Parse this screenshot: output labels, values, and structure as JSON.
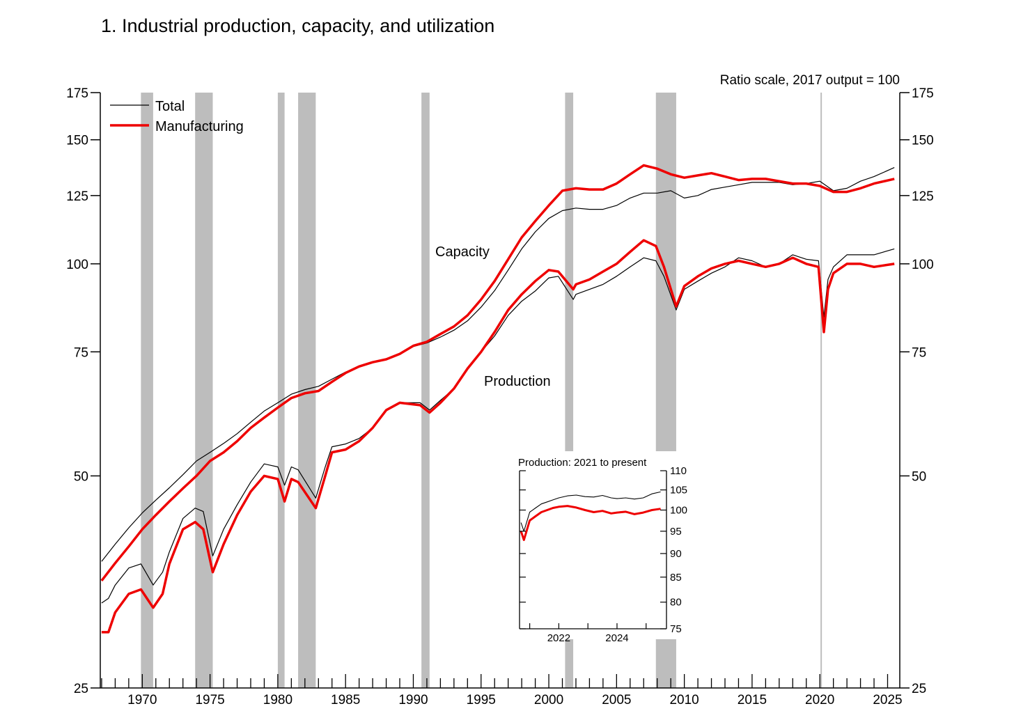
{
  "figure": {
    "title": "1.  Industrial production, capacity, and utilization",
    "scale_note": "Ratio scale, 2017 output = 100"
  },
  "colors": {
    "total": "#000000",
    "manufacturing": "#ee0000",
    "recession": "#bdbdbd"
  },
  "chart_data": {
    "type": "line",
    "title": "1.  Industrial production, capacity, and utilization",
    "yscale": "log",
    "ylim": [
      25,
      175
    ],
    "yticks": [
      25,
      50,
      75,
      100,
      125,
      150,
      175
    ],
    "xlim": [
      1966.9,
      2025.9
    ],
    "xticks": [
      1970,
      1975,
      1980,
      1985,
      1990,
      1995,
      2000,
      2005,
      2010,
      2015,
      2020,
      2025
    ],
    "legend": {
      "placement": "top-left",
      "entries": [
        "Total",
        "Manufacturing"
      ]
    },
    "annotations": [
      "Capacity",
      "Production"
    ],
    "recessions": [
      [
        1969.9,
        1970.8
      ],
      [
        1973.9,
        1975.2
      ],
      [
        1980.0,
        1980.5
      ],
      [
        1981.5,
        1982.8
      ],
      [
        1990.6,
        1991.2
      ],
      [
        2001.2,
        2001.8
      ],
      [
        2007.9,
        2009.4
      ],
      [
        2020.0,
        2020.2
      ]
    ],
    "series": [
      {
        "name": "Capacity",
        "group": "Total",
        "x": [
          1967,
          1968,
          1969,
          1970,
          1971,
          1972,
          1973,
          1974,
          1975,
          1976,
          1977,
          1978,
          1979,
          1980,
          1981,
          1982,
          1983,
          1984,
          1985,
          1986,
          1987,
          1988,
          1989,
          1990,
          1991,
          1992,
          1993,
          1994,
          1995,
          1996,
          1997,
          1998,
          1999,
          2000,
          2001,
          2002,
          2003,
          2004,
          2005,
          2006,
          2007,
          2008,
          2009,
          2010,
          2011,
          2012,
          2013,
          2014,
          2015,
          2016,
          2017,
          2018,
          2019,
          2020,
          2021,
          2022,
          2023,
          2024,
          2025.5
        ],
        "y": [
          37.8,
          40,
          42.2,
          44.3,
          46.2,
          48.1,
          50.2,
          52.5,
          54,
          55.6,
          57.4,
          59.6,
          61.8,
          63.5,
          65.3,
          66.3,
          67,
          68.6,
          70.2,
          71.4,
          72.5,
          73.3,
          74.5,
          76.3,
          77.2,
          78.7,
          80.5,
          83,
          86.8,
          91.6,
          98,
          105,
          111,
          116,
          119,
          120,
          119.5,
          119.5,
          121,
          124,
          126,
          126,
          127,
          124,
          125,
          127.5,
          128.5,
          129.5,
          130.5,
          130.5,
          130.5,
          129.5,
          130,
          131,
          127,
          128,
          131,
          133,
          137
        ]
      },
      {
        "name": "Capacity",
        "group": "Manufacturing",
        "x": [
          1967,
          1968,
          1969,
          1970,
          1971,
          1972,
          1973,
          1974,
          1975,
          1976,
          1977,
          1978,
          1979,
          1980,
          1981,
          1982,
          1983,
          1984,
          1985,
          1986,
          1987,
          1988,
          1989,
          1990,
          1991,
          1992,
          1993,
          1994,
          1995,
          1996,
          1997,
          1998,
          1999,
          2000,
          2001,
          2002,
          2003,
          2004,
          2005,
          2006,
          2007,
          2008,
          2009,
          2010,
          2011,
          2012,
          2013,
          2014,
          2015,
          2016,
          2017,
          2018,
          2019,
          2020,
          2021,
          2022,
          2023,
          2024,
          2025.5
        ],
        "y": [
          35.5,
          37.6,
          39.7,
          42,
          44,
          46,
          48,
          50,
          52.5,
          54,
          56,
          58.5,
          60.5,
          62.5,
          64.5,
          65.5,
          66,
          68,
          70,
          71.5,
          72.5,
          73.2,
          74.5,
          76.5,
          77.5,
          79.5,
          81.5,
          84.5,
          89,
          94.5,
          101.5,
          109,
          115,
          121,
          127,
          128,
          127.5,
          127.5,
          130,
          134,
          138,
          136.5,
          134,
          132.5,
          133.5,
          134.5,
          133,
          131.5,
          132,
          132,
          131,
          130,
          130,
          129,
          126.5,
          126.5,
          128,
          130,
          132
        ]
      },
      {
        "name": "Production",
        "group": "Total",
        "x": [
          1967,
          1967.5,
          1968,
          1969,
          1969.9,
          1970.8,
          1971.5,
          1972,
          1973,
          1973.9,
          1974.5,
          1975.2,
          1976,
          1977,
          1978,
          1979,
          1980.0,
          1980.5,
          1981,
          1981.5,
          1982.8,
          1983.5,
          1984,
          1985,
          1986,
          1987,
          1988,
          1989,
          1990.5,
          1991.2,
          1992,
          1993,
          1994,
          1995,
          1996,
          1997,
          1998,
          1999,
          2000,
          2000.7,
          2001.8,
          2002,
          2003,
          2004,
          2005,
          2006,
          2007,
          2007.9,
          2008.5,
          2009.4,
          2010,
          2011,
          2012,
          2013,
          2014,
          2015,
          2016,
          2017,
          2018,
          2019,
          2019.9,
          2020.3,
          2020.6,
          2021,
          2022,
          2023,
          2024,
          2025.5
        ],
        "y": [
          33,
          33.5,
          35,
          37,
          37.5,
          35,
          36.5,
          39,
          43.5,
          45,
          44.5,
          38.5,
          42,
          45.5,
          49,
          52,
          51.5,
          48.5,
          51.5,
          51,
          46.5,
          51.5,
          55,
          55.5,
          56.5,
          58.5,
          62,
          63.5,
          63.5,
          62,
          64,
          66.5,
          71,
          75,
          79,
          84.5,
          88.5,
          91.5,
          95.5,
          96,
          89,
          90.5,
          92,
          93.5,
          96,
          99,
          102,
          101,
          96,
          86,
          92,
          94.5,
          97,
          99,
          102,
          101,
          99,
          100,
          103,
          101.5,
          101,
          84,
          95,
          99,
          103,
          103,
          103,
          105
        ]
      },
      {
        "name": "Production",
        "group": "Manufacturing",
        "x": [
          1967,
          1967.5,
          1968,
          1969,
          1969.9,
          1970.8,
          1971.5,
          1972,
          1973,
          1973.9,
          1974.5,
          1975.2,
          1976,
          1977,
          1978,
          1979,
          1980.0,
          1980.5,
          1981,
          1981.5,
          1982.8,
          1983.5,
          1984,
          1985,
          1986,
          1987,
          1988,
          1989,
          1990.5,
          1991.2,
          1992,
          1993,
          1994,
          1995,
          1996,
          1997,
          1998,
          1999,
          2000,
          2000.7,
          2001.8,
          2002,
          2003,
          2004,
          2005,
          2006,
          2007,
          2007.9,
          2008.5,
          2009.4,
          2010,
          2011,
          2012,
          2013,
          2014,
          2015,
          2016,
          2017,
          2018,
          2019,
          2019.9,
          2020.3,
          2020.6,
          2021,
          2022,
          2023,
          2024,
          2025.5
        ],
        "y": [
          30,
          30,
          32,
          34,
          34.5,
          32.5,
          34,
          37.5,
          42,
          43,
          42,
          36.5,
          40,
          44,
          47.5,
          50,
          49.5,
          46,
          49.5,
          49,
          45,
          50,
          54,
          54.5,
          56,
          58.5,
          62,
          63.5,
          63,
          61.5,
          63.5,
          66.5,
          71,
          75,
          80,
          86,
          90.5,
          94.5,
          98,
          97.5,
          92,
          93.5,
          95,
          97.5,
          100,
          104,
          108,
          106,
          99,
          87,
          93,
          96,
          98.5,
          100,
          101,
          100,
          99,
          100,
          102,
          100,
          99,
          80,
          92,
          97,
          100,
          100,
          99,
          100
        ]
      }
    ],
    "inset": {
      "title": "Production: 2021 to present",
      "yscale": "log",
      "ylim": [
        75,
        110
      ],
      "yticks": [
        75,
        80,
        85,
        90,
        95,
        100,
        105,
        110
      ],
      "xlim": [
        2020.65,
        2025.7
      ],
      "xticks": [
        2022,
        2024
      ],
      "series": [
        {
          "name": "Total",
          "x": [
            2020.7,
            2020.8,
            2021,
            2021.2,
            2021.4,
            2021.6,
            2021.8,
            2022,
            2022.3,
            2022.6,
            2022.9,
            2023.2,
            2023.5,
            2023.8,
            2024,
            2024.3,
            2024.6,
            2024.9,
            2025.2,
            2025.5
          ],
          "y": [
            97,
            95,
            99.5,
            100.5,
            101.5,
            102,
            102.5,
            103,
            103.5,
            103.7,
            103.3,
            103.2,
            103.6,
            103,
            102.8,
            103,
            102.7,
            103,
            104,
            104.5
          ]
        },
        {
          "name": "Manufacturing",
          "x": [
            2020.7,
            2020.8,
            2021,
            2021.2,
            2021.4,
            2021.6,
            2021.8,
            2022,
            2022.3,
            2022.6,
            2022.9,
            2023.2,
            2023.5,
            2023.8,
            2024,
            2024.3,
            2024.6,
            2024.9,
            2025.2,
            2025.5
          ],
          "y": [
            95,
            93,
            97.5,
            98.5,
            99.5,
            100,
            100.5,
            100.8,
            101,
            100.6,
            100,
            99.5,
            99.8,
            99.2,
            99.4,
            99.6,
            99,
            99.4,
            100,
            100.3
          ]
        }
      ]
    }
  }
}
